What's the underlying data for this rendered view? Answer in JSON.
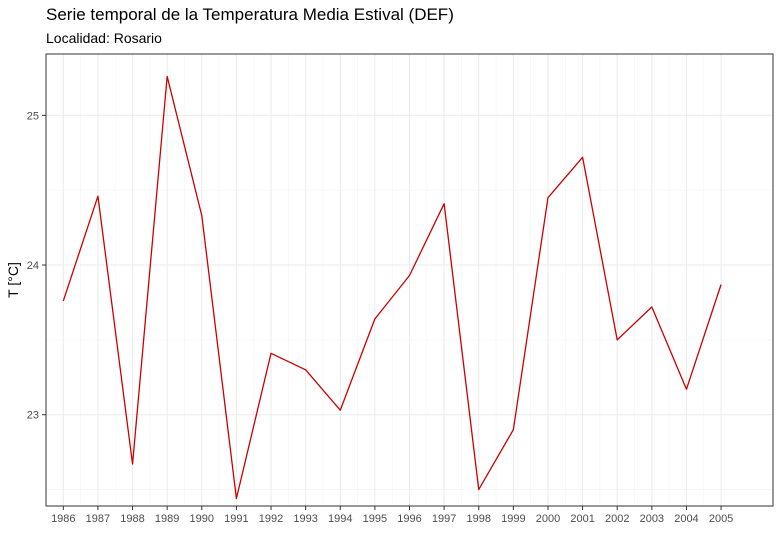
{
  "chart_data": {
    "type": "line",
    "title": "Serie temporal de la Temperatura Media Estival (DEF)",
    "subtitle": "Localidad: Rosario",
    "xlabel": "",
    "ylabel": "T [°C]",
    "x": [
      1986,
      1987,
      1988,
      1989,
      1990,
      1991,
      1992,
      1993,
      1994,
      1995,
      1996,
      1997,
      1998,
      1999,
      2000,
      2001,
      2002,
      2003,
      2004,
      2005
    ],
    "series": [
      {
        "values": [
          23.76,
          24.46,
          22.67,
          25.26,
          24.33,
          22.44,
          23.41,
          23.3,
          23.03,
          23.64,
          23.93,
          24.41,
          22.5,
          22.9,
          24.45,
          24.72,
          23.5,
          23.72,
          23.17,
          23.87
        ],
        "color": "#cc0000"
      }
    ],
    "xlim": [
      1985.5,
      2006.5
    ],
    "ylim": [
      22.39,
      25.41
    ],
    "yticks": [
      23,
      24,
      25
    ],
    "grid": true,
    "colors": {
      "line": "#cc0000",
      "panel_border": "#333333",
      "grid": "#ebebeb"
    }
  }
}
